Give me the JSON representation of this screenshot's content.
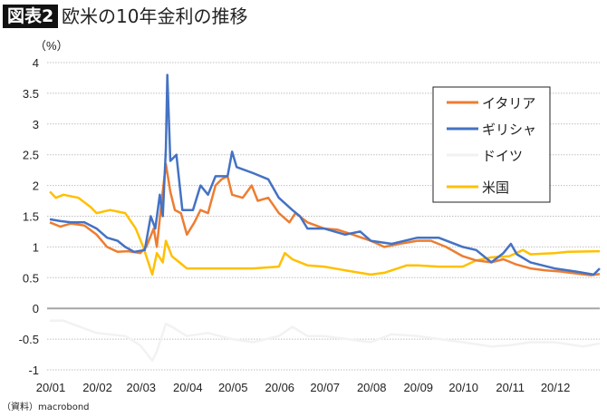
{
  "header": {
    "badge": "図表2",
    "title": "欧米の10年金利の推移"
  },
  "source": "（資料）macrobond",
  "chart_data": {
    "type": "line",
    "title": "欧米の10年金利の推移",
    "ylabel": "（%）",
    "ylim": [
      -1,
      4
    ],
    "yticks": [
      4,
      3.5,
      3,
      2.5,
      2,
      1.5,
      1,
      0.5,
      0,
      -0.5,
      -1
    ],
    "xlim": [
      "2020-01-01",
      "2020-12-31"
    ],
    "xticks": [
      {
        "date": "2020-01-01",
        "label": "20/01"
      },
      {
        "date": "2020-02-01",
        "label": "20/02"
      },
      {
        "date": "2020-03-01",
        "label": "20/03"
      },
      {
        "date": "2020-04-01",
        "label": "20/04"
      },
      {
        "date": "2020-05-01",
        "label": "20/05"
      },
      {
        "date": "2020-06-01",
        "label": "20/06"
      },
      {
        "date": "2020-07-01",
        "label": "20/07"
      },
      {
        "date": "2020-08-01",
        "label": "20/08"
      },
      {
        "date": "2020-09-01",
        "label": "20/09"
      },
      {
        "date": "2020-10-01",
        "label": "20/10"
      },
      {
        "date": "2020-11-01",
        "label": "20/11"
      },
      {
        "date": "2020-12-01",
        "label": "20/12"
      }
    ],
    "grid": true,
    "legend": "top-right",
    "series": [
      {
        "name": "イタリア",
        "color": "#ED7D31",
        "points": [
          [
            "2020-01-01",
            1.4
          ],
          [
            "2020-01-08",
            1.33
          ],
          [
            "2020-01-15",
            1.38
          ],
          [
            "2020-01-24",
            1.35
          ],
          [
            "2020-02-01",
            1.2
          ],
          [
            "2020-02-08",
            1.0
          ],
          [
            "2020-02-15",
            0.92
          ],
          [
            "2020-02-22",
            0.93
          ],
          [
            "2020-03-01",
            0.9
          ],
          [
            "2020-03-05",
            1.0
          ],
          [
            "2020-03-10",
            1.3
          ],
          [
            "2020-03-12",
            1.0
          ],
          [
            "2020-03-15",
            1.7
          ],
          [
            "2020-03-18",
            2.35
          ],
          [
            "2020-03-21",
            1.9
          ],
          [
            "2020-03-24",
            1.6
          ],
          [
            "2020-03-28",
            1.55
          ],
          [
            "2020-04-01",
            1.2
          ],
          [
            "2020-04-06",
            1.4
          ],
          [
            "2020-04-10",
            1.6
          ],
          [
            "2020-04-15",
            1.55
          ],
          [
            "2020-04-20",
            2.0
          ],
          [
            "2020-04-24",
            2.1
          ],
          [
            "2020-04-28",
            2.15
          ],
          [
            "2020-05-01",
            1.85
          ],
          [
            "2020-05-08",
            1.8
          ],
          [
            "2020-05-14",
            2.0
          ],
          [
            "2020-05-18",
            1.75
          ],
          [
            "2020-05-25",
            1.8
          ],
          [
            "2020-06-01",
            1.55
          ],
          [
            "2020-06-08",
            1.4
          ],
          [
            "2020-06-12",
            1.55
          ],
          [
            "2020-06-20",
            1.4
          ],
          [
            "2020-07-01",
            1.3
          ],
          [
            "2020-07-10",
            1.28
          ],
          [
            "2020-07-20",
            1.2
          ],
          [
            "2020-08-01",
            1.1
          ],
          [
            "2020-08-10",
            1.0
          ],
          [
            "2020-08-20",
            1.05
          ],
          [
            "2020-09-01",
            1.1
          ],
          [
            "2020-09-10",
            1.1
          ],
          [
            "2020-09-20",
            1.0
          ],
          [
            "2020-10-01",
            0.85
          ],
          [
            "2020-10-10",
            0.78
          ],
          [
            "2020-10-20",
            0.75
          ],
          [
            "2020-10-28",
            0.8
          ],
          [
            "2020-11-05",
            0.72
          ],
          [
            "2020-11-15",
            0.65
          ],
          [
            "2020-11-25",
            0.62
          ],
          [
            "2020-12-05",
            0.6
          ],
          [
            "2020-12-15",
            0.57
          ],
          [
            "2020-12-25",
            0.54
          ],
          [
            "2020-12-31",
            0.56
          ]
        ]
      },
      {
        "name": "ギリシャ",
        "color": "#4472C4",
        "points": [
          [
            "2020-01-01",
            1.45
          ],
          [
            "2020-01-08",
            1.42
          ],
          [
            "2020-01-15",
            1.4
          ],
          [
            "2020-01-24",
            1.4
          ],
          [
            "2020-02-01",
            1.3
          ],
          [
            "2020-02-08",
            1.15
          ],
          [
            "2020-02-15",
            1.1
          ],
          [
            "2020-02-20",
            1.0
          ],
          [
            "2020-02-26",
            0.92
          ],
          [
            "2020-03-04",
            0.95
          ],
          [
            "2020-03-08",
            1.5
          ],
          [
            "2020-03-11",
            1.3
          ],
          [
            "2020-03-14",
            1.85
          ],
          [
            "2020-03-16",
            1.5
          ],
          [
            "2020-03-18",
            2.6
          ],
          [
            "2020-03-19",
            3.8
          ],
          [
            "2020-03-21",
            2.4
          ],
          [
            "2020-03-25",
            2.5
          ],
          [
            "2020-03-29",
            1.6
          ],
          [
            "2020-04-05",
            1.6
          ],
          [
            "2020-04-10",
            2.0
          ],
          [
            "2020-04-15",
            1.85
          ],
          [
            "2020-04-20",
            2.15
          ],
          [
            "2020-04-28",
            2.15
          ],
          [
            "2020-05-01",
            2.55
          ],
          [
            "2020-05-04",
            2.3
          ],
          [
            "2020-05-15",
            2.2
          ],
          [
            "2020-05-25",
            2.1
          ],
          [
            "2020-06-01",
            1.8
          ],
          [
            "2020-06-10",
            1.6
          ],
          [
            "2020-06-15",
            1.5
          ],
          [
            "2020-06-20",
            1.3
          ],
          [
            "2020-07-01",
            1.3
          ],
          [
            "2020-07-15",
            1.2
          ],
          [
            "2020-07-25",
            1.25
          ],
          [
            "2020-08-01",
            1.1
          ],
          [
            "2020-08-15",
            1.05
          ],
          [
            "2020-09-01",
            1.15
          ],
          [
            "2020-09-15",
            1.15
          ],
          [
            "2020-10-01",
            1.0
          ],
          [
            "2020-10-10",
            0.95
          ],
          [
            "2020-10-20",
            0.75
          ],
          [
            "2020-10-28",
            0.9
          ],
          [
            "2020-11-02",
            1.05
          ],
          [
            "2020-11-06",
            0.88
          ],
          [
            "2020-11-15",
            0.75
          ],
          [
            "2020-12-01",
            0.65
          ],
          [
            "2020-12-15",
            0.6
          ],
          [
            "2020-12-27",
            0.55
          ],
          [
            "2020-12-31",
            0.65
          ]
        ]
      },
      {
        "name": "ドイツ",
        "color": "#F2F2F2",
        "points": [
          [
            "2020-01-01",
            -0.2
          ],
          [
            "2020-01-10",
            -0.2
          ],
          [
            "2020-02-01",
            -0.4
          ],
          [
            "2020-02-20",
            -0.45
          ],
          [
            "2020-03-01",
            -0.6
          ],
          [
            "2020-03-09",
            -0.85
          ],
          [
            "2020-03-12",
            -0.7
          ],
          [
            "2020-03-18",
            -0.25
          ],
          [
            "2020-03-22",
            -0.3
          ],
          [
            "2020-04-01",
            -0.45
          ],
          [
            "2020-04-15",
            -0.4
          ],
          [
            "2020-05-01",
            -0.5
          ],
          [
            "2020-05-15",
            -0.55
          ],
          [
            "2020-06-01",
            -0.45
          ],
          [
            "2020-06-10",
            -0.3
          ],
          [
            "2020-06-20",
            -0.45
          ],
          [
            "2020-07-01",
            -0.45
          ],
          [
            "2020-08-01",
            -0.55
          ],
          [
            "2020-08-15",
            -0.42
          ],
          [
            "2020-09-01",
            -0.45
          ],
          [
            "2020-10-01",
            -0.55
          ],
          [
            "2020-10-20",
            -0.62
          ],
          [
            "2020-11-01",
            -0.6
          ],
          [
            "2020-11-15",
            -0.55
          ],
          [
            "2020-12-01",
            -0.55
          ],
          [
            "2020-12-20",
            -0.62
          ],
          [
            "2020-12-31",
            -0.57
          ]
        ]
      },
      {
        "name": "米国",
        "color": "#FFC000",
        "points": [
          [
            "2020-01-01",
            1.9
          ],
          [
            "2020-01-05",
            1.8
          ],
          [
            "2020-01-10",
            1.85
          ],
          [
            "2020-01-20",
            1.8
          ],
          [
            "2020-01-28",
            1.65
          ],
          [
            "2020-02-01",
            1.55
          ],
          [
            "2020-02-10",
            1.6
          ],
          [
            "2020-02-20",
            1.55
          ],
          [
            "2020-02-27",
            1.3
          ],
          [
            "2020-03-03",
            1.0
          ],
          [
            "2020-03-09",
            0.55
          ],
          [
            "2020-03-12",
            0.9
          ],
          [
            "2020-03-16",
            0.75
          ],
          [
            "2020-03-18",
            1.1
          ],
          [
            "2020-03-22",
            0.85
          ],
          [
            "2020-04-01",
            0.65
          ],
          [
            "2020-04-15",
            0.65
          ],
          [
            "2020-05-01",
            0.65
          ],
          [
            "2020-05-15",
            0.65
          ],
          [
            "2020-06-01",
            0.68
          ],
          [
            "2020-06-05",
            0.9
          ],
          [
            "2020-06-10",
            0.8
          ],
          [
            "2020-06-20",
            0.7
          ],
          [
            "2020-07-01",
            0.68
          ],
          [
            "2020-07-15",
            0.62
          ],
          [
            "2020-08-01",
            0.55
          ],
          [
            "2020-08-10",
            0.58
          ],
          [
            "2020-08-25",
            0.7
          ],
          [
            "2020-09-01",
            0.7
          ],
          [
            "2020-09-15",
            0.68
          ],
          [
            "2020-10-01",
            0.68
          ],
          [
            "2020-10-10",
            0.78
          ],
          [
            "2020-10-20",
            0.83
          ],
          [
            "2020-11-01",
            0.85
          ],
          [
            "2020-11-10",
            0.95
          ],
          [
            "2020-11-15",
            0.88
          ],
          [
            "2020-12-01",
            0.9
          ],
          [
            "2020-12-10",
            0.92
          ],
          [
            "2020-12-31",
            0.93
          ]
        ]
      }
    ]
  }
}
